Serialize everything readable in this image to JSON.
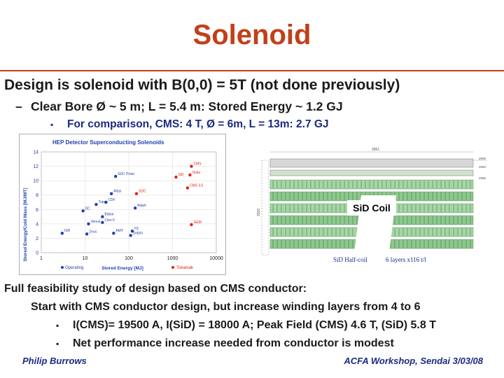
{
  "slide": {
    "title": "Solenoid",
    "bullet1": "Design is solenoid with B(0,0) = 5T (not done previously)",
    "dash": "–",
    "bullet2": "Clear Bore Ø ~ 5 m; L = 5.4 m: Stored Energy ~ 1.2 GJ",
    "square": "▪",
    "bullet3": "For comparison, CMS: 4 T, Ø = 6m, L = 13m: 2.7 GJ",
    "line1": "Full feasibility study of design based on CMS conductor:",
    "line2": "Start with CMS conductor design, but increase winding layers from 4 to 6",
    "line3": "I(CMS)= 19500 A, I(SiD) = 18000 A; Peak Field (CMS) 4.6 T, (SiD) 5.8 T",
    "line4": "Net performance increase needed from conductor is modest",
    "footer_left": "Philip Burrows",
    "footer_right": "ACFA Workshop, Sendai 3/03/08"
  },
  "chart_data": {
    "type": "scatter",
    "title": "HEP Detector Superconducting Solenoids",
    "xlabel": "Stored Energy [MJ]",
    "ylabel": "Stored Energy/Cold Mass [MJ/MT]",
    "x_scale": "log",
    "xlim": [
      1,
      10000
    ],
    "ylim": [
      0,
      14
    ],
    "x_ticks": [
      "1",
      "10",
      "100",
      "1000",
      "10000"
    ],
    "y_ticks": [
      "0",
      "2",
      "4",
      "6",
      "8",
      "10",
      "12",
      "14"
    ],
    "legend": [
      "Operating",
      "Tokamak"
    ],
    "legend_placement": "bottom",
    "series": [
      {
        "name": "Operating",
        "color": "#1f3fb0",
        "points": [
          {
            "label": "ISR",
            "x": 3,
            "y": 2.7
          },
          {
            "label": "Zeus",
            "x": 11,
            "y": 2.6
          },
          {
            "label": "Venus",
            "x": 12,
            "y": 4.0
          },
          {
            "label": "DC",
            "x": 9,
            "y": 5.8
          },
          {
            "label": "Topaz",
            "x": 18,
            "y": 6.7
          },
          {
            "label": "Cleo II",
            "x": 25,
            "y": 4.2
          },
          {
            "label": "Babar",
            "x": 25,
            "y": 5.0
          },
          {
            "label": "CDF",
            "x": 30,
            "y": 7.0
          },
          {
            "label": "Atlas",
            "x": 40,
            "y": 8.2
          },
          {
            "label": "Aleph",
            "x": 140,
            "y": 6.2
          },
          {
            "label": "AMY",
            "x": 45,
            "y": 2.7
          },
          {
            "label": "H1",
            "x": 120,
            "y": 3.0
          },
          {
            "label": "Delphi",
            "x": 110,
            "y": 2.4
          },
          {
            "label": "SDC Proto",
            "x": 50,
            "y": 10.6
          }
        ]
      },
      {
        "name": "Tokamak",
        "color": "#e0201a",
        "points": [
          {
            "label": "CMS",
            "x": 2700,
            "y": 12.0
          },
          {
            "label": "SiD",
            "x": 1200,
            "y": 10.5
          },
          {
            "label": "Tesla",
            "x": 2500,
            "y": 10.8
          },
          {
            "label": "CMS 3.5",
            "x": 2200,
            "y": 9.0
          },
          {
            "label": "SDC",
            "x": 150,
            "y": 8.2
          },
          {
            "label": "GEM",
            "x": 2700,
            "y": 3.9
          }
        ]
      }
    ]
  },
  "diagram": {
    "label": "SiD Coil",
    "caption_left": "SiD Half-coil",
    "caption_right": "6 layers x116 t/l",
    "dim_top": "2861",
    "dim_right1": "2995",
    "dim_right2": "2650",
    "dim_right3": "2585",
    "side_label": "2500"
  }
}
